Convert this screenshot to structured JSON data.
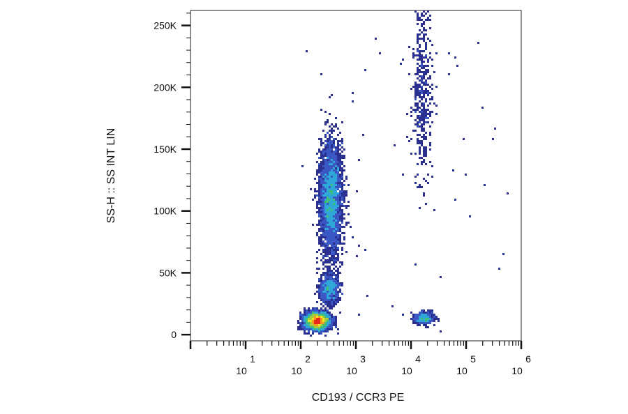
{
  "chart_data": {
    "type": "scatter",
    "subtype": "flow-cytometry density dot plot",
    "xlabel": "CD193 / CCR3 PE",
    "ylabel": "SS-H :: SS INT LIN",
    "x_scale": "log",
    "y_scale": "linear",
    "xlim": [
      1,
      1000000
    ],
    "ylim": [
      -5000,
      262144
    ],
    "x_ticks": [
      {
        "base": "10",
        "exp": "1"
      },
      {
        "base": "10",
        "exp": "2"
      },
      {
        "base": "10",
        "exp": "3"
      },
      {
        "base": "10",
        "exp": "4"
      },
      {
        "base": "10",
        "exp": "5"
      },
      {
        "base": "10",
        "exp": "6"
      }
    ],
    "y_ticks": [
      {
        "value": 0,
        "label": "0"
      },
      {
        "value": 50000,
        "label": "50K"
      },
      {
        "value": 100000,
        "label": "100K"
      },
      {
        "value": 150000,
        "label": "150K"
      },
      {
        "value": 200000,
        "label": "200K"
      },
      {
        "value": 250000,
        "label": "250K"
      }
    ],
    "populations": [
      {
        "name_hint": "low-SSC cluster",
        "x_log_center": 2.3,
        "x_log_sd": 0.11,
        "y_center": 11000,
        "y_sd": 3500,
        "weight": 0.4
      },
      {
        "name_hint": "mid-SSC cluster",
        "x_log_center": 2.52,
        "x_log_sd": 0.09,
        "y_center": 37000,
        "y_sd": 6000,
        "weight": 0.1
      },
      {
        "name_hint": "main SSC column",
        "x_log_center": 2.55,
        "x_log_sd": 0.1,
        "y_center": 110000,
        "y_sd": 22000,
        "weight": 0.4
      },
      {
        "name_hint": "high-SSC CCR3+ column",
        "x_log_center": 4.2,
        "x_log_sd": 0.09,
        "y_center": 200000,
        "y_sd": 35000,
        "weight": 0.05
      },
      {
        "name_hint": "low-SSC CCR3+ cluster",
        "x_log_center": 4.25,
        "x_log_sd": 0.09,
        "y_center": 13000,
        "y_sd": 2500,
        "weight": 0.05
      }
    ],
    "colormap": [
      "#2b2f8f",
      "#3a57c4",
      "#2fa7d8",
      "#3fbf7a",
      "#a6cc3a",
      "#f2e51d",
      "#f39a1f",
      "#e8281c"
    ]
  }
}
